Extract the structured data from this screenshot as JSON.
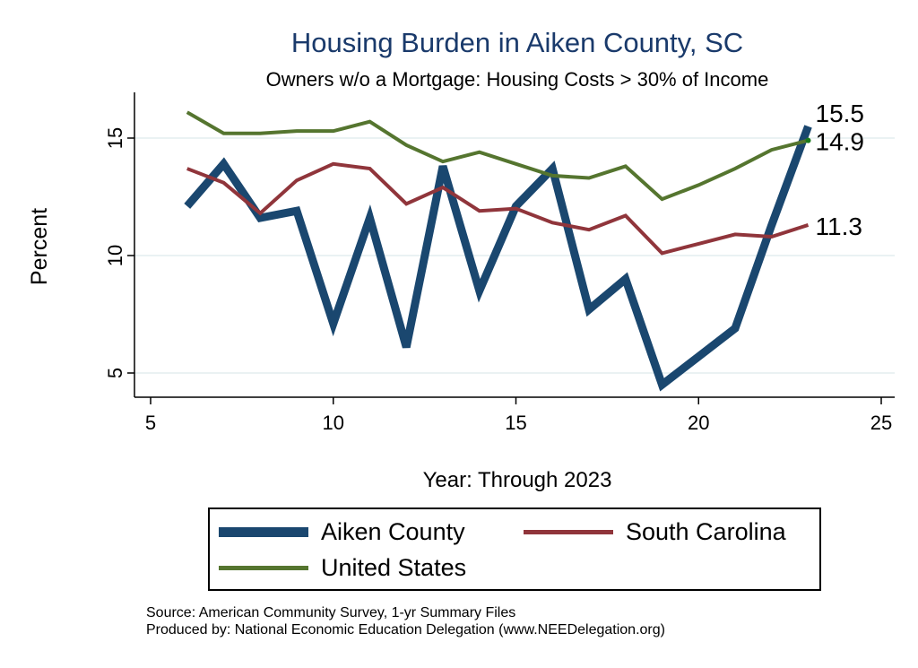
{
  "chart_data": {
    "type": "line",
    "title": "Housing Burden in Aiken County, SC",
    "subtitle": "Owners w/o a Mortgage: Housing Costs > 30% of Income",
    "xlabel": "Year: Through 2023",
    "ylabel": "Percent",
    "xlim": [
      5,
      25
    ],
    "ylim": [
      4,
      16.8
    ],
    "xticks": [
      5,
      10,
      15,
      20,
      25
    ],
    "yticks": [
      5,
      10,
      15
    ],
    "grid": true,
    "x": [
      6,
      7,
      8,
      9,
      10,
      11,
      12,
      13,
      14,
      15,
      16,
      17,
      18,
      19,
      20,
      21,
      22,
      23
    ],
    "series": [
      {
        "name": "Aiken County",
        "color": "#1a476f",
        "width": 9,
        "values": [
          12.1,
          13.9,
          11.6,
          11.9,
          7.1,
          11.6,
          6.1,
          13.8,
          8.5,
          12.1,
          13.7,
          7.7,
          9.0,
          4.5,
          5.7,
          6.9,
          11.3,
          15.5
        ],
        "end_label": "15.5"
      },
      {
        "name": "South Carolina",
        "color": "#90353b",
        "width": 4,
        "values": [
          13.7,
          13.1,
          11.8,
          13.2,
          13.9,
          13.7,
          12.2,
          12.9,
          11.9,
          12.0,
          11.4,
          11.1,
          11.7,
          10.1,
          10.5,
          10.9,
          10.8,
          11.3
        ],
        "end_label": "11.3"
      },
      {
        "name": "United States",
        "color": "#55752f",
        "width": 4,
        "values": [
          16.1,
          15.2,
          15.2,
          15.3,
          15.3,
          15.7,
          14.7,
          14.0,
          14.4,
          13.9,
          13.4,
          13.3,
          13.8,
          12.4,
          13.0,
          13.7,
          14.5,
          14.9
        ],
        "end_label": "14.9"
      }
    ],
    "legend_position": "bottom"
  },
  "source": {
    "line1": "Source: American Community Survey, 1-yr Summary Files",
    "line2": "Produced by: National Economic Education Delegation (www.NEEDelegation.org)"
  }
}
